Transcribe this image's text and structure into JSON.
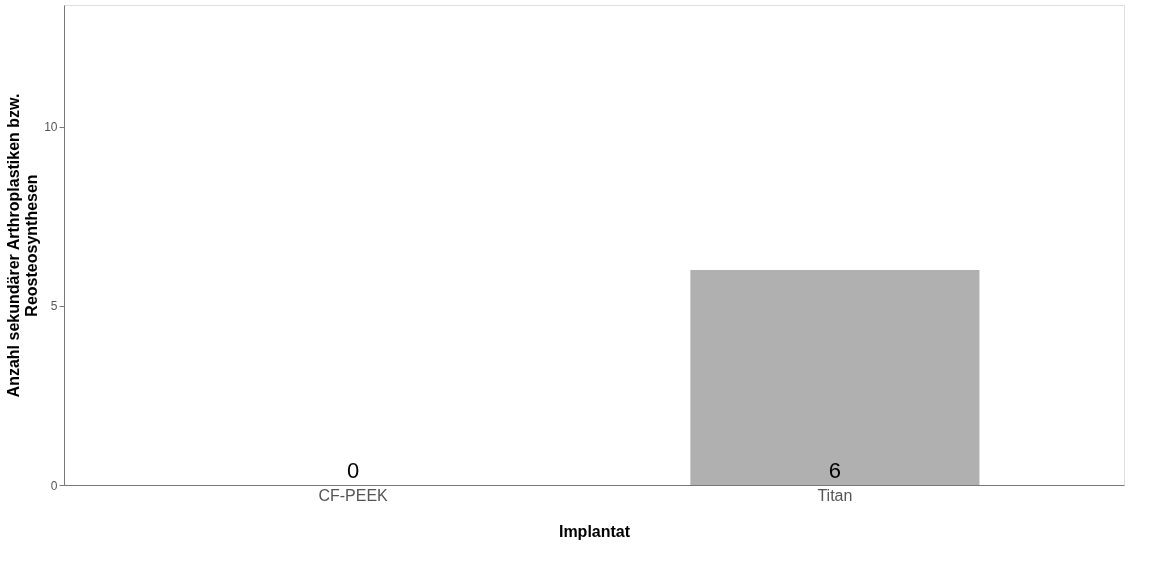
{
  "chart_data": {
    "type": "bar",
    "xlabel": "Implantat",
    "ylabel": "Anzahl sekundärer Arthroplastiken bzw. Reosteosynthesen",
    "categories": [
      "CF-PEEK",
      "Titan"
    ],
    "values": [
      0,
      6
    ],
    "color": "#b0b0b0",
    "ylim": [
      0,
      13.4
    ],
    "yticks": [
      0,
      5,
      10
    ],
    "grid": false,
    "data_labels": true
  }
}
